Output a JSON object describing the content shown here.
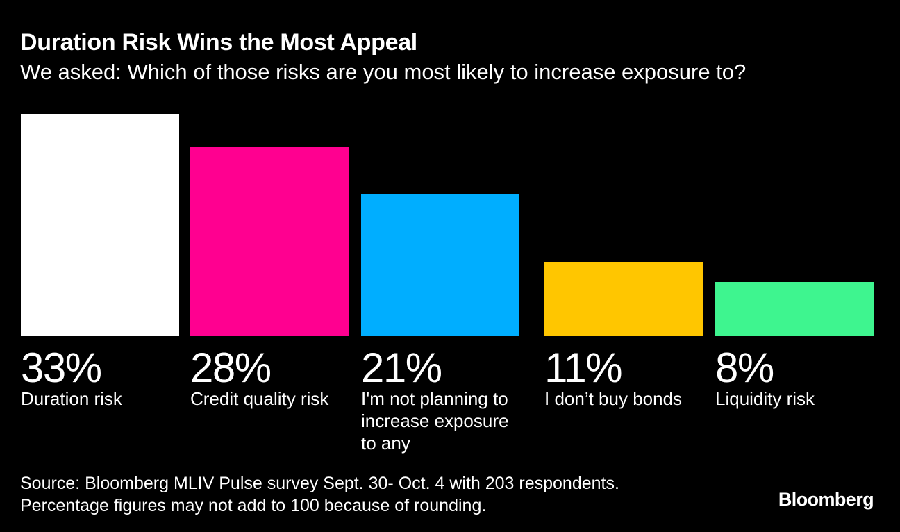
{
  "header": {
    "title": "Duration Risk Wins the Most Appeal",
    "subtitle": "We asked: Which of those risks are you most likely to increase exposure to?"
  },
  "chart_data": {
    "type": "bar",
    "categories": [
      "Duration risk",
      "Credit quality risk",
      "I'm not planning to increase exposure to any",
      "I don’t buy bonds",
      "Liquidity risk"
    ],
    "values": [
      33,
      28,
      21,
      11,
      8
    ],
    "value_labels": [
      "33%",
      "28%",
      "21%",
      "11%",
      "8%"
    ],
    "colors": [
      "#ffffff",
      "#ff0090",
      "#00aeff",
      "#ffc600",
      "#3ef58f"
    ],
    "ylim": [
      0,
      33
    ],
    "grid": false,
    "legend": "none"
  },
  "footer": {
    "source_line1": "Source: Bloomberg MLIV Pulse survey Sept. 30- Oct. 4 with 203 respondents.",
    "source_line2": "Percentage figures may not add to 100 because of rounding.",
    "brand": "Bloomberg"
  }
}
